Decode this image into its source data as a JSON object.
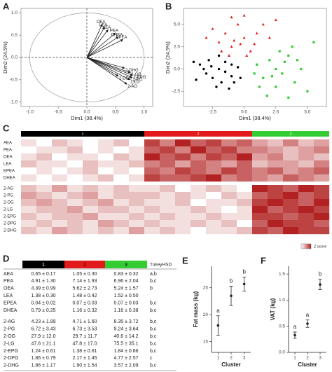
{
  "panel_labels": [
    "A",
    "B",
    "C",
    "D",
    "E",
    "F"
  ],
  "chart_data": [
    {
      "type": "biplot",
      "xlabel": "Dim1 (38.4%)",
      "ylabel": "Dim2 (24.5%)",
      "xlim": [
        -1.15,
        1.15
      ],
      "ylim": [
        -1.1,
        1.1
      ],
      "xticks": [
        {
          "value": -1,
          "label": "-1.0"
        },
        {
          "value": -0.5,
          "label": "-0.5"
        },
        {
          "value": 0,
          "label": "0.0"
        },
        {
          "value": 0.5,
          "label": "0.5"
        },
        {
          "value": 1,
          "label": "1.0"
        }
      ],
      "yticks": [
        {
          "value": -1,
          "label": "-1.0"
        },
        {
          "value": -0.5,
          "label": "-0.5"
        },
        {
          "value": 0,
          "label": "0.0"
        },
        {
          "value": 0.5,
          "label": "0.5"
        },
        {
          "value": 1,
          "label": "1.0"
        }
      ],
      "labels": [
        "OEA",
        "LEA",
        "AEA",
        "PEA",
        "DHEA",
        "EPEA",
        "2-DHG",
        "2-OG",
        "2-EPG",
        "2-PG",
        "2-DPG",
        "2-LG",
        "2-AG"
      ],
      "x": [
        0.27,
        0.31,
        0.37,
        0.5,
        0.55,
        0.63,
        0.66,
        0.76,
        0.8,
        0.79,
        0.55,
        0.75,
        0.7
      ],
      "values": [
        0.75,
        0.68,
        0.62,
        0.55,
        0.46,
        0.4,
        -0.24,
        -0.34,
        -0.4,
        -0.45,
        -0.42,
        -0.5,
        -0.6
      ]
    },
    {
      "type": "scatter",
      "xlabel": "Dim1 (38.4%)",
      "ylabel": "Dim2 (24.5%)",
      "xlim": [
        -4.8,
        6.5
      ],
      "ylim": [
        -4.2,
        6.8
      ],
      "xticks": [
        {
          "value": -2.5,
          "label": "-2.5"
        },
        {
          "value": 0,
          "label": "0.0"
        },
        {
          "value": 2.5,
          "label": "2.5"
        },
        {
          "value": 5,
          "label": "5.0"
        }
      ],
      "yticks": [
        {
          "value": -2.5,
          "label": "-2.5"
        },
        {
          "value": 0,
          "label": "0.0"
        },
        {
          "value": 2.5,
          "label": "2.5"
        },
        {
          "value": 5,
          "label": "5.0"
        }
      ],
      "series": [
        {
          "color": "#000000",
          "marker": "circle",
          "x": [
            -3.5,
            -3,
            -2.8,
            -2.5,
            -2,
            -1.8,
            -1.5,
            -1,
            -0.5,
            -3.8,
            -2.2,
            -1.2,
            -0.8,
            -3.2,
            -2,
            -1.5,
            -2.6,
            -0.3,
            -4,
            -1
          ],
          "values": [
            0.5,
            -0.5,
            1,
            -1,
            0,
            -1.5,
            0.8,
            -0.8,
            0.2,
            -1.2,
            -2,
            -2.2,
            -1.5,
            0,
            1.5,
            -0.3,
            0.3,
            -1,
            0.8,
            0.5
          ]
        },
        {
          "color": "#e31a1c",
          "marker": "triangle",
          "x": [
            -2,
            -1.5,
            -1,
            -0.5,
            0,
            0.5,
            -2.5,
            -1,
            1,
            0.2,
            -0.8,
            -1.8,
            1.5,
            0,
            -0.3,
            2,
            -3,
            0.8,
            -1.2,
            2.5
          ],
          "values": [
            3,
            4,
            2.5,
            5,
            3.5,
            2,
            4.5,
            5.8,
            4,
            1.5,
            3.2,
            2,
            5,
            6,
            2.8,
            3.5,
            3.5,
            2.8,
            1.5,
            5.5
          ]
        },
        {
          "color": "#33cc33",
          "marker": "square",
          "x": [
            1,
            1.5,
            2,
            2.5,
            3,
            3.5,
            4,
            1.2,
            2.2,
            3.2,
            4.5,
            5,
            2.8,
            0.8,
            3.8,
            1.8,
            4.2,
            5.5,
            2.5,
            3.5
          ],
          "values": [
            0.5,
            -1,
            1,
            0,
            -0.5,
            1.5,
            -1.5,
            -2,
            -0.8,
            0.8,
            0,
            -2.5,
            2,
            -0.5,
            2.5,
            -3,
            1,
            3,
            -2,
            -3.2
          ]
        }
      ]
    },
    {
      "type": "errorbar",
      "ylabel": "Fat mass (kg)",
      "xlabel": "Cluster",
      "categories": [
        "1",
        "2",
        "3"
      ],
      "values": [
        18,
        23.5,
        25.7
      ],
      "errors": [
        1.8,
        1.8,
        1.3
      ],
      "letters": [
        "a",
        "b",
        "b"
      ],
      "ylim": [
        13,
        29
      ],
      "yticks": [
        15,
        20,
        25
      ]
    },
    {
      "type": "errorbar",
      "ylabel": "VAT (kg)",
      "xlabel": "Cluster",
      "categories": [
        "1",
        "2",
        "3"
      ],
      "values": [
        0.33,
        0.55,
        1.3
      ],
      "errors": [
        0.06,
        0.07,
        0.1
      ],
      "letters": [
        "a",
        "a",
        "b"
      ],
      "ylim": [
        0,
        1.65
      ],
      "yticks": [
        {
          "value": 0,
          "label": "0.0"
        },
        {
          "value": 0.5,
          "label": "0.5"
        },
        {
          "value": 1,
          "label": "1.0"
        },
        {
          "value": 1.5,
          "label": "1.5"
        }
      ]
    }
  ],
  "heatmap": {
    "legend_label": "Z score",
    "clusters": [
      {
        "label": "1",
        "color": "#000000",
        "n": 8
      },
      {
        "label": "2",
        "color": "#e31a1c",
        "n": 7
      },
      {
        "label": "3",
        "color": "#33cc33",
        "n": 5
      }
    ],
    "groups": [
      {
        "rows": [
          {
            "name": "AEA",
            "values": [
              0.2,
              0.1,
              0.3,
              0.2,
              0.1,
              0.2,
              0.3,
              0.1,
              0.7,
              0.5,
              0.8,
              0.6,
              0.7,
              0.5,
              0.6,
              0.4,
              0.3,
              0.5,
              0.3,
              0.4
            ]
          },
          {
            "name": "PEA",
            "values": [
              0.1,
              0.2,
              0.2,
              0.3,
              0.1,
              0.2,
              0.1,
              0.2,
              0.6,
              0.7,
              0.5,
              0.8,
              0.6,
              0.7,
              0.5,
              0.5,
              0.4,
              0.3,
              0.4,
              0.5
            ]
          },
          {
            "name": "OEA",
            "values": [
              0.2,
              0.3,
              0.1,
              0.2,
              0.2,
              0.1,
              0.3,
              0.2,
              0.8,
              0.6,
              0.7,
              0.5,
              0.7,
              0.6,
              0.8,
              0.4,
              0.5,
              0.3,
              0.4,
              0.3
            ]
          },
          {
            "name": "LEA",
            "values": [
              0.3,
              0.2,
              0.2,
              0.1,
              0.3,
              0.2,
              0.2,
              0.3,
              0.5,
              0.6,
              0.4,
              0.6,
              0.5,
              0.4,
              0.6,
              0.3,
              0.4,
              0.4,
              0.3,
              0.5
            ]
          },
          {
            "name": "EPEA",
            "values": [
              0.1,
              0.2,
              0.1,
              0.2,
              0.3,
              0.1,
              0.2,
              0.1,
              0.6,
              0.5,
              0.7,
              0.6,
              0.5,
              0.7,
              0.6,
              0.5,
              0.6,
              0.4,
              0.5,
              0.6
            ]
          },
          {
            "name": "DHEA",
            "values": [
              0.2,
              0.1,
              0.2,
              0.1,
              0.2,
              0.3,
              0.1,
              0.2,
              0.7,
              0.6,
              0.6,
              0.7,
              0.8,
              0.5,
              0.6,
              0.5,
              0.4,
              0.6,
              0.5,
              0.4
            ]
          }
        ]
      },
      {
        "rows": [
          {
            "name": "2-AG",
            "values": [
              0.3,
              0.2,
              0.4,
              0.2,
              0.3,
              0.2,
              0.3,
              0.2,
              0.2,
              0.3,
              0.1,
              0.2,
              0.3,
              0.2,
              0.1,
              0.8,
              0.7,
              0.6,
              0.8,
              0.7
            ]
          },
          {
            "name": "2-PG",
            "values": [
              0.4,
              0.3,
              0.2,
              0.3,
              0.4,
              0.2,
              0.3,
              0.3,
              0.3,
              0.2,
              0.3,
              0.2,
              0.1,
              0.3,
              0.2,
              0.6,
              0.7,
              0.8,
              0.6,
              0.7
            ]
          },
          {
            "name": "2-OG",
            "values": [
              0.3,
              0.4,
              0.3,
              0.2,
              0.3,
              0.4,
              0.2,
              0.3,
              0.2,
              0.2,
              0.3,
              0.1,
              0.2,
              0.2,
              0.3,
              0.7,
              0.8,
              0.7,
              0.6,
              0.8
            ]
          },
          {
            "name": "2-LG",
            "values": [
              0.2,
              0.3,
              0.3,
              0.4,
              0.2,
              0.3,
              0.3,
              0.2,
              0.3,
              0.2,
              0.2,
              0.3,
              0.2,
              0.1,
              0.2,
              0.8,
              0.6,
              0.7,
              0.8,
              0.7
            ]
          },
          {
            "name": "2-EPG",
            "values": [
              0.3,
              0.2,
              0.3,
              0.3,
              0.4,
              0.2,
              0.2,
              0.3,
              0.2,
              0.3,
              0.2,
              0.2,
              0.3,
              0.2,
              0.2,
              0.7,
              0.7,
              0.6,
              0.7,
              0.8
            ]
          },
          {
            "name": "2-DPG",
            "values": [
              0.2,
              0.3,
              0.2,
              0.3,
              0.2,
              0.4,
              0.3,
              0.2,
              0.3,
              0.2,
              0.2,
              0.3,
              0.2,
              0.3,
              0.1,
              0.6,
              0.8,
              0.7,
              0.7,
              0.6
            ]
          },
          {
            "name": "2-DHG",
            "values": [
              0.3,
              0.2,
              0.4,
              0.3,
              0.2,
              0.3,
              0.2,
              0.4,
              0.2,
              0.3,
              0.2,
              0.1,
              0.2,
              0.2,
              0.3,
              0.7,
              0.6,
              0.8,
              0.7,
              0.7
            ]
          }
        ]
      }
    ]
  },
  "table": {
    "header": [
      "1",
      "2",
      "3",
      "TukeyHSD"
    ],
    "header_colors": [
      "#000000",
      "#e31a1c",
      "#33cc33"
    ],
    "groups": [
      {
        "rows": [
          [
            "AEA",
            "0.65 ± 0.17",
            "1.05 ± 0.30",
            "0.83 ± 0.32",
            "a,b"
          ],
          [
            "PEA",
            "4.91 ± 1.30",
            "7.14 ± 1.93",
            "6.96 ± 2.04",
            "b,c"
          ],
          [
            "OEA",
            "4.39 ± 0.99",
            "5.62 ± 2.73",
            "5.24 ± 1.57",
            "b"
          ],
          [
            "LEA",
            "1.38 ± 0.30",
            "1.48 ± 0.42",
            "1.52 ± 0.50"
          ],
          [
            "EPEA",
            "0.04 ± 0.02",
            "0.07 ± 0.03",
            "0.07 ± 0.03",
            "b,c"
          ],
          [
            "DHEA",
            "0.79 ± 0.25",
            "1.16 ± 0.32",
            "1.16 ± 0.38",
            "b,c"
          ]
        ]
      },
      {
        "rows": [
          [
            "2-AG",
            "4.23 ± 1.89",
            "4.71 ± 1.60",
            "8.35 ± 3.72",
            "b,c"
          ],
          [
            "2-PG",
            "6.72 ± 3.43",
            "6.73 ± 3.53",
            "9.24 ± 3.64",
            "b,c"
          ],
          [
            "2-OG",
            "27.9 ± 12.0",
            "29.7 ± 11.7",
            "40.6 ± 14.2",
            "b,c"
          ],
          [
            "2-LG",
            "47.6 ± 21.1",
            "47.8 ± 17.0",
            "75.5 ± 35.1",
            "b,c"
          ],
          [
            "2-EPG",
            "1.24 ± 0.61",
            "1.38 ± 0.61",
            "1.84 ± 0.86",
            "b,c"
          ],
          [
            "2-DPG",
            "1.86 ± 0.79",
            "2.17 ± 1.45",
            "4.77 ± 2.57",
            "c"
          ],
          [
            "2-DHG",
            "1.86 ± 1.17",
            "1.90 ± 1.54",
            "3.57 ± 2.09",
            "b,c"
          ]
        ]
      }
    ]
  }
}
